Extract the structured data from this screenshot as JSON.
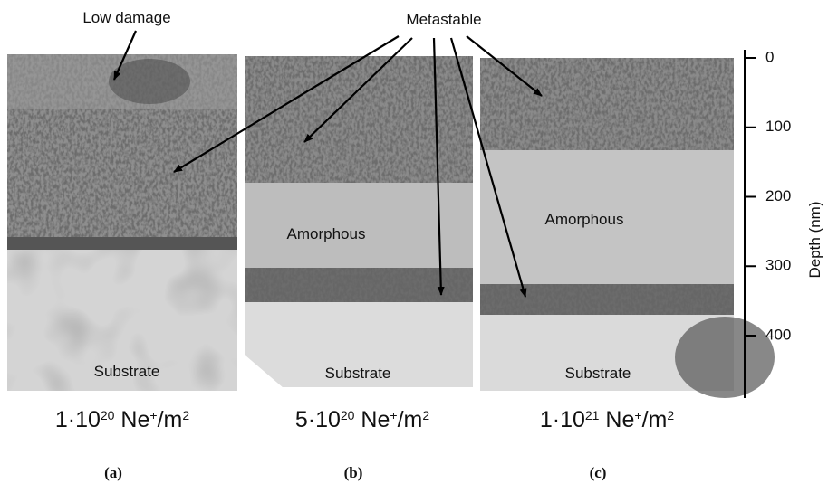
{
  "annotations": {
    "low_damage": "Low damage",
    "metastable": "Metastable"
  },
  "panels": [
    {
      "label": "(a)",
      "layers": {
        "substrate": "Substrate"
      },
      "dose": {
        "mantissa": "1·10",
        "exponent": "20",
        "ion": " Ne",
        "charge": "+",
        "unit": "/m",
        "unit_exponent": "2"
      }
    },
    {
      "label": "(b)",
      "layers": {
        "amorphous": "Amorphous",
        "substrate": "Substrate"
      },
      "dose": {
        "mantissa": "5·10",
        "exponent": "20",
        "ion": " Ne",
        "charge": "+",
        "unit": "/m",
        "unit_exponent": "2"
      }
    },
    {
      "label": "(c)",
      "layers": {
        "amorphous": "Amorphous",
        "substrate": "Substrate"
      },
      "dose": {
        "mantissa": "1·10",
        "exponent": "21",
        "ion": " Ne",
        "charge": "+",
        "unit": "/m",
        "unit_exponent": "2"
      }
    }
  ],
  "depth_scale": {
    "label": "Depth (nm)",
    "ticks": [
      0,
      100,
      200,
      300,
      400
    ]
  }
}
